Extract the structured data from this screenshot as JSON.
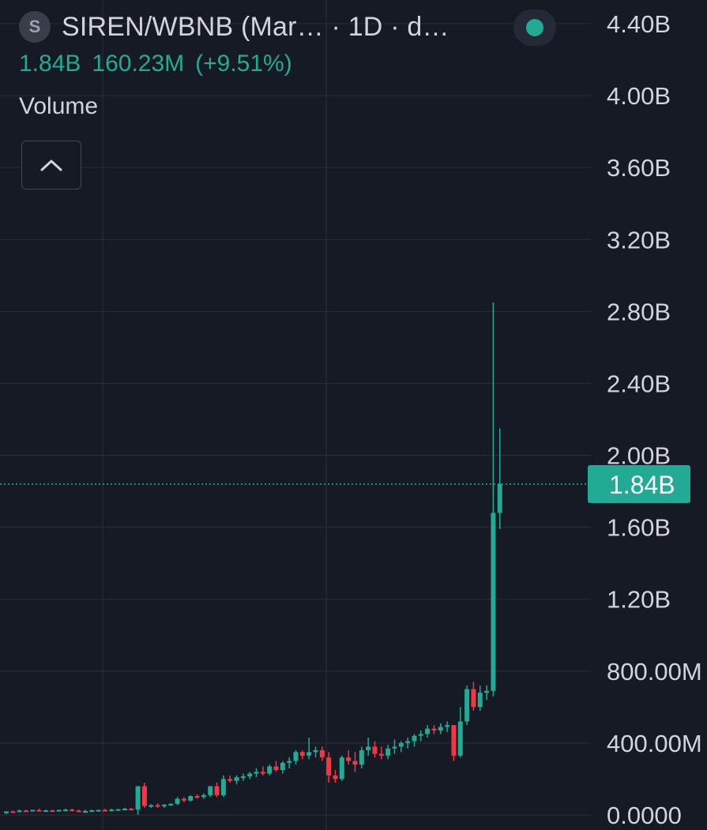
{
  "header": {
    "symbol_icon": "S",
    "title": "SIREN/WBNB (Mar…  · 1D · d…",
    "status_color": "#22ab94",
    "ohlc": {
      "close": "1.84B",
      "change": "160.23M",
      "change_pct": "(+9.51%)"
    },
    "indicator": "Volume"
  },
  "colors": {
    "up": "#22ab94",
    "down": "#f23645",
    "background": "#161a25",
    "grid": "#2a2e39",
    "text": "#d1d4dc"
  },
  "chart_data": {
    "type": "candlestick",
    "y_ticks": [
      "4.40B",
      "4.00B",
      "3.60B",
      "3.20B",
      "2.80B",
      "2.40B",
      "2.00B",
      "1.60B",
      "1.20B",
      "800.00M",
      "400.00M",
      "0.0000"
    ],
    "ylim": [
      0,
      4.4
    ],
    "y_unit": "B",
    "last_price": {
      "value": 1.84,
      "label": "1.84B"
    },
    "candles": [
      [
        0.01,
        0.02,
        0.005,
        0.02
      ],
      [
        0.02,
        0.025,
        0.015,
        0.018
      ],
      [
        0.018,
        0.03,
        0.015,
        0.025
      ],
      [
        0.025,
        0.03,
        0.02,
        0.022
      ],
      [
        0.022,
        0.03,
        0.02,
        0.028
      ],
      [
        0.028,
        0.035,
        0.02,
        0.022
      ],
      [
        0.022,
        0.03,
        0.018,
        0.026
      ],
      [
        0.026,
        0.03,
        0.02,
        0.024
      ],
      [
        0.024,
        0.03,
        0.02,
        0.028
      ],
      [
        0.028,
        0.035,
        0.024,
        0.03
      ],
      [
        0.03,
        0.035,
        0.02,
        0.025
      ],
      [
        0.025,
        0.03,
        0.015,
        0.02
      ],
      [
        0.02,
        0.03,
        0.015,
        0.022
      ],
      [
        0.022,
        0.03,
        0.02,
        0.026
      ],
      [
        0.026,
        0.03,
        0.02,
        0.028
      ],
      [
        0.028,
        0.035,
        0.02,
        0.024
      ],
      [
        0.024,
        0.035,
        0.02,
        0.03
      ],
      [
        0.03,
        0.035,
        0.025,
        0.032
      ],
      [
        0.032,
        0.04,
        0.025,
        0.035
      ],
      [
        0.035,
        0.04,
        0.025,
        0.03
      ],
      [
        0.03,
        0.16,
        0.0,
        0.16
      ],
      [
        0.16,
        0.18,
        0.04,
        0.05
      ],
      [
        0.05,
        0.06,
        0.04,
        0.055
      ],
      [
        0.055,
        0.065,
        0.04,
        0.05
      ],
      [
        0.05,
        0.06,
        0.04,
        0.058
      ],
      [
        0.058,
        0.065,
        0.05,
        0.062
      ],
      [
        0.062,
        0.1,
        0.055,
        0.09
      ],
      [
        0.09,
        0.1,
        0.07,
        0.08
      ],
      [
        0.08,
        0.11,
        0.075,
        0.105
      ],
      [
        0.105,
        0.115,
        0.09,
        0.1
      ],
      [
        0.1,
        0.12,
        0.09,
        0.11
      ],
      [
        0.11,
        0.16,
        0.1,
        0.16
      ],
      [
        0.16,
        0.18,
        0.1,
        0.11
      ],
      [
        0.11,
        0.22,
        0.1,
        0.2
      ],
      [
        0.2,
        0.22,
        0.18,
        0.19
      ],
      [
        0.19,
        0.22,
        0.17,
        0.21
      ],
      [
        0.21,
        0.23,
        0.19,
        0.215
      ],
      [
        0.215,
        0.24,
        0.2,
        0.23
      ],
      [
        0.23,
        0.26,
        0.21,
        0.24
      ],
      [
        0.24,
        0.27,
        0.22,
        0.23
      ],
      [
        0.23,
        0.28,
        0.22,
        0.27
      ],
      [
        0.27,
        0.3,
        0.24,
        0.25
      ],
      [
        0.25,
        0.3,
        0.23,
        0.29
      ],
      [
        0.29,
        0.32,
        0.26,
        0.3
      ],
      [
        0.3,
        0.36,
        0.28,
        0.35
      ],
      [
        0.35,
        0.36,
        0.31,
        0.33
      ],
      [
        0.33,
        0.43,
        0.31,
        0.35
      ],
      [
        0.35,
        0.38,
        0.32,
        0.36
      ],
      [
        0.36,
        0.38,
        0.3,
        0.32
      ],
      [
        0.32,
        0.35,
        0.18,
        0.22
      ],
      [
        0.22,
        0.25,
        0.18,
        0.2
      ],
      [
        0.2,
        0.33,
        0.19,
        0.32
      ],
      [
        0.32,
        0.36,
        0.28,
        0.3
      ],
      [
        0.3,
        0.35,
        0.24,
        0.28
      ],
      [
        0.28,
        0.38,
        0.26,
        0.36
      ],
      [
        0.36,
        0.43,
        0.33,
        0.38
      ],
      [
        0.38,
        0.41,
        0.32,
        0.34
      ],
      [
        0.34,
        0.38,
        0.31,
        0.33
      ],
      [
        0.33,
        0.39,
        0.31,
        0.37
      ],
      [
        0.37,
        0.42,
        0.34,
        0.38
      ],
      [
        0.38,
        0.41,
        0.35,
        0.4
      ],
      [
        0.4,
        0.43,
        0.37,
        0.41
      ],
      [
        0.41,
        0.45,
        0.38,
        0.44
      ],
      [
        0.44,
        0.47,
        0.41,
        0.45
      ],
      [
        0.45,
        0.5,
        0.43,
        0.48
      ],
      [
        0.48,
        0.5,
        0.45,
        0.47
      ],
      [
        0.47,
        0.51,
        0.45,
        0.49
      ],
      [
        0.49,
        0.52,
        0.46,
        0.5
      ],
      [
        0.5,
        0.5,
        0.3,
        0.33
      ],
      [
        0.33,
        0.6,
        0.32,
        0.52
      ],
      [
        0.52,
        0.72,
        0.5,
        0.7
      ],
      [
        0.7,
        0.74,
        0.58,
        0.6
      ],
      [
        0.6,
        0.72,
        0.58,
        0.68
      ],
      [
        0.68,
        0.72,
        0.64,
        0.69
      ],
      [
        0.69,
        2.85,
        0.66,
        1.68
      ],
      [
        1.68,
        2.15,
        1.59,
        1.84
      ]
    ]
  }
}
